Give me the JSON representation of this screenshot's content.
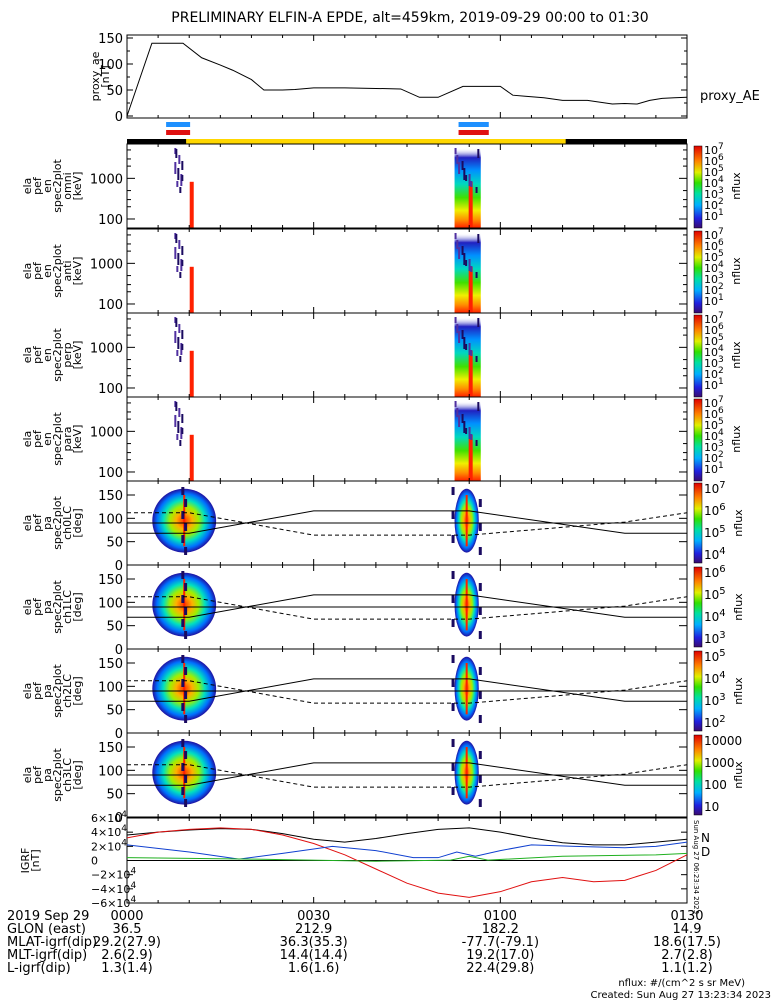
{
  "title": "PRELIMINARY ELFIN-A EPDE, alt=459km, 2019-09-29 00:00 to 01:30",
  "proxy": {
    "ylabel": "proxy_ae\n[nT]",
    "legend": "proxy_AE",
    "ticks": [
      "150",
      "100",
      "50",
      "0"
    ]
  },
  "bars": {
    "blue_color": "#1e90ff",
    "red_color": "#e01010",
    "yellow_color": "#ffd700"
  },
  "energy_panels": [
    {
      "ylabel": "ela\npef\nen\nspec2plot\nomni\n[keV]"
    },
    {
      "ylabel": "ela\npef\nen\nspec2plot\nanti\n[keV]"
    },
    {
      "ylabel": "ela\npef\nen\nspec2plot\nperp\n[keV]"
    },
    {
      "ylabel": "ela\npef\nen\nspec2plot\npara\n[keV]"
    }
  ],
  "energy_ticks": [
    "1000",
    "100"
  ],
  "pa_panels": [
    {
      "ylabel": "ela\npef\npa\nspec2plot\nch0LC\n[deg]",
      "cbar": [
        "10^7",
        "10^6",
        "10^5",
        "10^4"
      ]
    },
    {
      "ylabel": "ela\npef\npa\nspec2plot\nch1LC\n[deg]",
      "cbar": [
        "10^6",
        "10^5",
        "10^4",
        "10^3"
      ]
    },
    {
      "ylabel": "ela\npef\npa\nspec2plot\nch2LC\n[deg]",
      "cbar": [
        "10^5",
        "10^4",
        "10^3",
        "10^2"
      ]
    },
    {
      "ylabel": "ela\npef\npa\nspec2plot\nch3LC\n[deg]",
      "cbar": [
        "10000",
        "1000",
        "100",
        "10"
      ]
    }
  ],
  "pa_ticks": [
    "150",
    "100",
    "50",
    "0"
  ],
  "energy_cbar": [
    "10^7",
    "10^6",
    "10^5",
    "10^4",
    "10^3",
    "10^2",
    "10^1"
  ],
  "cbar_label": "nflux",
  "igrf": {
    "ylabel": "IGRF\n[nT]",
    "ticks": [
      "6×10^4",
      "4×10^4",
      "2×10^4",
      "0",
      "−2×10^4",
      "−4×10^4",
      "−6×10^4"
    ],
    "legend_n": "N",
    "legend_d": "D",
    "stamp": "Sun Aug 27 06:23:34 2023"
  },
  "footer": {
    "rows": [
      {
        "label": "2019 Sep 29",
        "values": [
          "0000",
          "0030",
          "0100",
          "0130"
        ]
      },
      {
        "label": "GLON (east)",
        "values": [
          "36.5",
          "212.9",
          "182.2",
          "14.9"
        ]
      },
      {
        "label": "MLAT-igrf(dip)",
        "values": [
          "29.2(27.9)",
          "36.3(35.3)",
          "-77.7(-79.1)",
          "18.6(17.5)"
        ]
      },
      {
        "label": "MLT-igrf(dip)",
        "values": [
          "2.6(2.9)",
          "14.4(14.4)",
          "19.2(17.0)",
          "2.7(2.8)"
        ]
      },
      {
        "label": "L-igrf(dip)",
        "values": [
          "1.3(1.4)",
          "1.6(1.6)",
          "22.4(29.8)",
          "1.1(1.2)"
        ]
      }
    ],
    "note1": "nflux: #/(cm^2 s sr MeV)",
    "note2": "Created: Sun Aug 27 13:23:34 2023"
  },
  "chart_data": {
    "type": "line",
    "title": "PRELIMINARY ELFIN-A EPDE, alt=459km, 2019-09-29 00:00 to 01:30",
    "x_unit": "minutes after 2019-09-29 00:00",
    "x_ticks": [
      "0000",
      "0030",
      "0100",
      "0130"
    ],
    "xlim": [
      0,
      90
    ],
    "proxy_ae": {
      "ylim": [
        0,
        150
      ],
      "series": [
        {
          "name": "proxy_AE",
          "x": [
            0,
            4,
            9,
            12,
            15,
            17,
            20,
            22,
            25,
            27,
            30,
            33,
            35,
            40,
            44,
            47,
            50,
            54,
            56,
            60,
            62,
            64,
            67,
            70,
            74,
            78,
            80,
            82,
            84,
            86,
            88,
            90
          ],
          "y": [
            0,
            140,
            140,
            112,
            98,
            88,
            70,
            50,
            50,
            51,
            54,
            54,
            54,
            53,
            52,
            36,
            36,
            57,
            57,
            57,
            40,
            38,
            35,
            30,
            30,
            23,
            24,
            23,
            30,
            34,
            35,
            36
          ]
        }
      ]
    },
    "science_zones_min": [
      [
        5,
        9.5
      ],
      [
        52,
        57.5
      ]
    ],
    "coverage_min": [
      9.5,
      70.5
    ],
    "energy_spectrograms": {
      "ylim_keV": [
        60,
        7000
      ],
      "y_log": true,
      "bursts_min": [
        [
          6,
          9.5
        ],
        [
          52,
          57.5
        ]
      ]
    },
    "pitch_angle_spectrograms": {
      "ylim_deg": [
        0,
        180
      ],
      "loss_cone_reference_deg": 90
    },
    "igrf": {
      "ylim": [
        -60000,
        60000
      ],
      "series": [
        {
          "name": "N",
          "color": "#000000",
          "x": [
            0,
            5,
            10,
            15,
            20,
            25,
            30,
            35,
            40,
            45,
            50,
            55,
            60,
            65,
            70,
            75,
            80,
            85,
            90
          ],
          "y": [
            36000,
            40000,
            43000,
            45000,
            44000,
            38000,
            30000,
            26000,
            31000,
            38000,
            44000,
            46000,
            40000,
            32000,
            25000,
            22000,
            22000,
            26000,
            30000
          ]
        },
        {
          "name": "D",
          "color": "#e01010",
          "x": [
            0,
            5,
            10,
            15,
            20,
            25,
            30,
            35,
            40,
            45,
            50,
            55,
            60,
            65,
            70,
            75,
            80,
            85,
            90
          ],
          "y": [
            32000,
            40000,
            44000,
            46000,
            44000,
            36000,
            24000,
            8000,
            -12000,
            -32000,
            -46000,
            -52000,
            -44000,
            -30000,
            -24000,
            -30000,
            -28000,
            -14000,
            8000
          ]
        }
      ]
    }
  }
}
